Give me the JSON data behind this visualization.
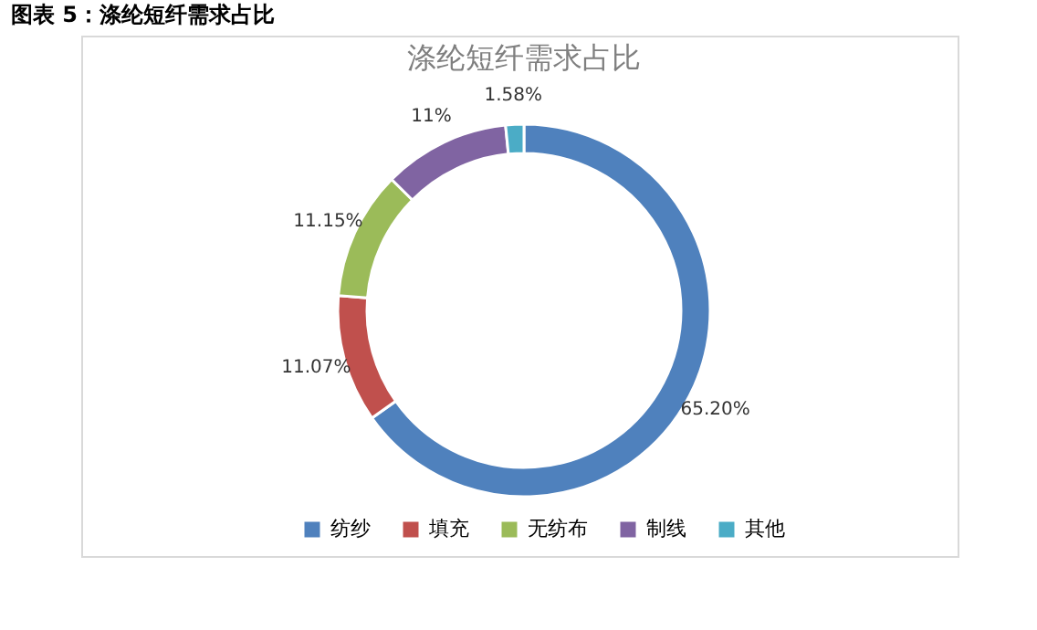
{
  "chart_data": {
    "type": "donut",
    "title": "图表 5：涤纶短纤需求占比",
    "subtitle": "涤纶短纤需求占比",
    "categories": [
      "纺纱",
      "填充",
      "无纺布",
      "制线",
      "其他"
    ],
    "values": [
      65.2,
      11.07,
      11.15,
      11,
      1.58
    ],
    "value_labels": [
      "65.20%",
      "11.07%",
      "11.15%",
      "11%",
      "1.58%"
    ],
    "colors": [
      "#4f81bd",
      "#c0504d",
      "#9bbb59",
      "#8064a2",
      "#4bacc6"
    ],
    "legend": "bottom"
  }
}
